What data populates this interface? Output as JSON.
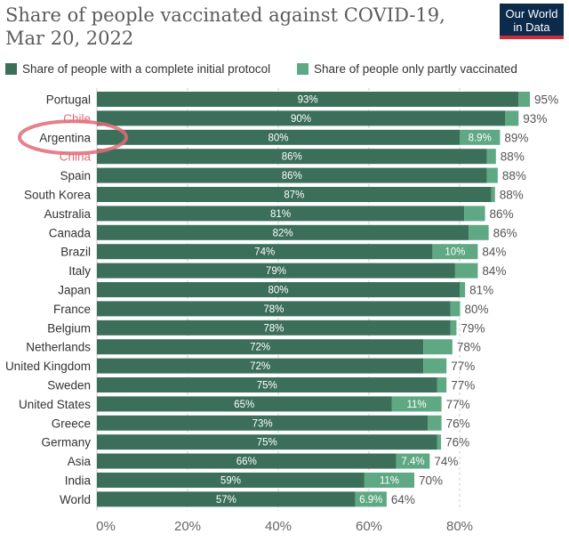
{
  "title": "Share of people vaccinated against COVID-19, Mar 20, 2022",
  "logo": {
    "line1": "Our World",
    "line2": "in Data"
  },
  "colors": {
    "complete": "#3b6f5a",
    "partial": "#5fa884",
    "label_text": "#ffffff",
    "annotation": "#e06b78"
  },
  "chart_data": {
    "type": "bar",
    "orientation": "horizontal",
    "stacked": true,
    "categories": [
      "Portugal",
      "Chile",
      "Argentina",
      "China",
      "Spain",
      "South Korea",
      "Australia",
      "Canada",
      "Brazil",
      "Italy",
      "Japan",
      "France",
      "Belgium",
      "Netherlands",
      "United Kingdom",
      "Sweden",
      "United States",
      "Greece",
      "Germany",
      "Asia",
      "India",
      "World"
    ],
    "series": [
      {
        "name": "Share of people with a complete initial protocol",
        "values": [
          93,
          90,
          80,
          86,
          86,
          87,
          81,
          82,
          74,
          79,
          80,
          78,
          78,
          72,
          72,
          75,
          65,
          73,
          75,
          66,
          59,
          57
        ]
      },
      {
        "name": "Share of people only partly vaccinated",
        "values": [
          2.5,
          3,
          8.9,
          2,
          2.4,
          0.8,
          4.6,
          4.4,
          10,
          5,
          1.2,
          2.1,
          1.3,
          6.4,
          5.1,
          2.1,
          11,
          3,
          0.9,
          7.4,
          11,
          6.9
        ]
      }
    ],
    "complete_labels": [
      "93%",
      "90%",
      "80%",
      "86%",
      "86%",
      "87%",
      "81%",
      "82%",
      "74%",
      "79%",
      "80%",
      "78%",
      "78%",
      "72%",
      "72%",
      "75%",
      "65%",
      "73%",
      "75%",
      "66%",
      "59%",
      "57%"
    ],
    "partial_labels": [
      "",
      "",
      "8.9%",
      "",
      "",
      "",
      "",
      "",
      "10%",
      "",
      "",
      "",
      "",
      "",
      "",
      "",
      "11%",
      "",
      "",
      "7.4%",
      "11%",
      "6.9%"
    ],
    "total_labels": [
      "95%",
      "93%",
      "89%",
      "88%",
      "88%",
      "88%",
      "86%",
      "86%",
      "84%",
      "84%",
      "81%",
      "80%",
      "79%",
      "78%",
      "77%",
      "77%",
      "77%",
      "76%",
      "76%",
      "74%",
      "70%",
      "64%"
    ],
    "highlighted_categories": [
      "Chile",
      "China"
    ],
    "circled_category": "Argentina",
    "xticks": [
      "0%",
      "20%",
      "40%",
      "60%",
      "80%"
    ],
    "xlim": [
      0,
      100
    ],
    "grid": true,
    "legend_position": "top"
  }
}
